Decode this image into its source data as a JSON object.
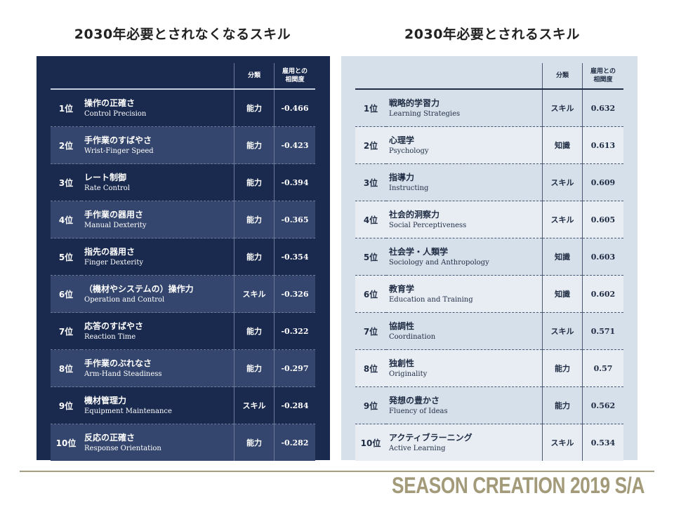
{
  "left": {
    "heading": "2030年必要とされなくなるスキル",
    "col_category": "分類",
    "col_correlation_1": "雇用との",
    "col_correlation_2": "相関度",
    "rows": [
      {
        "rank": "1位",
        "ja": "操作の正確さ",
        "en": "Control Precision",
        "cat": "能力",
        "val": "-0.466"
      },
      {
        "rank": "2位",
        "ja": "手作業のすばやさ",
        "en": "Wrist-Finger Speed",
        "cat": "能力",
        "val": "-0.423"
      },
      {
        "rank": "3位",
        "ja": "レート制御",
        "en": "Rate Control",
        "cat": "能力",
        "val": "-0.394"
      },
      {
        "rank": "4位",
        "ja": "手作業の器用さ",
        "en": "Manual Dexterity",
        "cat": "能力",
        "val": "-0.365"
      },
      {
        "rank": "5位",
        "ja": "指先の器用さ",
        "en": "Finger Dexterity",
        "cat": "能力",
        "val": "-0.354"
      },
      {
        "rank": "6位",
        "ja": "（機材やシステムの）操作力",
        "en": "Operation and Control",
        "cat": "スキル",
        "val": "-0.326"
      },
      {
        "rank": "7位",
        "ja": "応答のすばやさ",
        "en": "Reaction Time",
        "cat": "能力",
        "val": "-0.322"
      },
      {
        "rank": "8位",
        "ja": "手作業のぶれなさ",
        "en": "Arm-Hand Steadiness",
        "cat": "能力",
        "val": "-0.297"
      },
      {
        "rank": "9位",
        "ja": "機材管理力",
        "en": "Equipment Maintenance",
        "cat": "スキル",
        "val": "-0.284"
      },
      {
        "rank": "10位",
        "ja": "反応の正確さ",
        "en": "Response Orientation",
        "cat": "能力",
        "val": "-0.282"
      }
    ]
  },
  "right": {
    "heading": "2030年必要とされるスキル",
    "col_category": "分類",
    "col_correlation_1": "雇用との",
    "col_correlation_2": "相関度",
    "rows": [
      {
        "rank": "1位",
        "ja": "戦略的学習力",
        "en": "Learning Strategies",
        "cat": "スキル",
        "val": "0.632"
      },
      {
        "rank": "2位",
        "ja": "心理学",
        "en": "Psychology",
        "cat": "知識",
        "val": "0.613"
      },
      {
        "rank": "3位",
        "ja": "指導力",
        "en": "Instructing",
        "cat": "スキル",
        "val": "0.609"
      },
      {
        "rank": "4位",
        "ja": "社会的洞察力",
        "en": "Social Perceptiveness",
        "cat": "スキル",
        "val": "0.605"
      },
      {
        "rank": "5位",
        "ja": "社会学・人類学",
        "en": "Sociology and Anthropology",
        "cat": "知識",
        "val": "0.603"
      },
      {
        "rank": "6位",
        "ja": "教育学",
        "en": "Education and Training",
        "cat": "知識",
        "val": "0.602"
      },
      {
        "rank": "7位",
        "ja": "協調性",
        "en": "Coordination",
        "cat": "スキル",
        "val": "0.571"
      },
      {
        "rank": "8位",
        "ja": "独創性",
        "en": "Originality",
        "cat": "能力",
        "val": "0.57"
      },
      {
        "rank": "9位",
        "ja": "発想の豊かさ",
        "en": "Fluency of Ideas",
        "cat": "能力",
        "val": "0.562"
      },
      {
        "rank": "10位",
        "ja": "アクティブラーニング",
        "en": "Active Learning",
        "cat": "スキル",
        "val": "0.534"
      }
    ]
  },
  "footer": "SEASON CREATION 2019  S/A"
}
